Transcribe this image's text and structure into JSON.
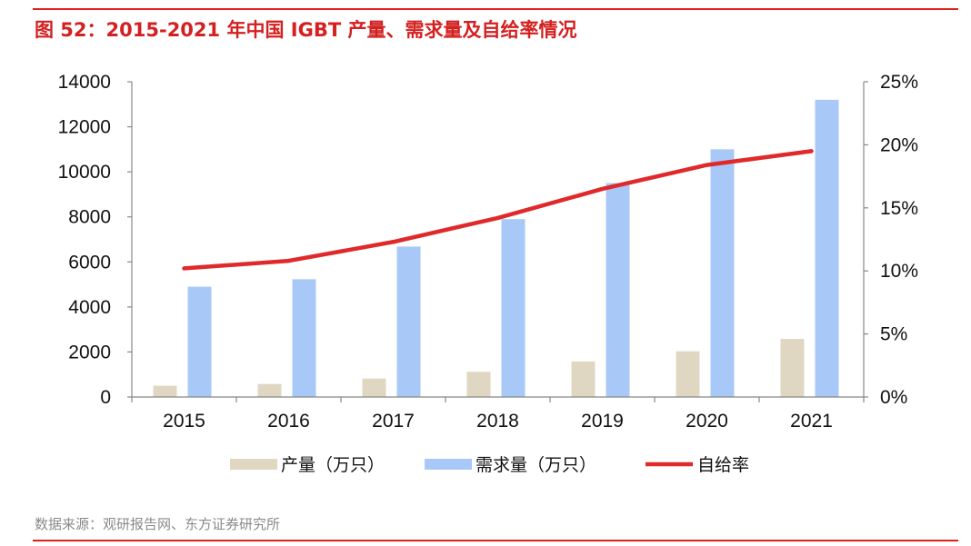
{
  "header": {
    "title": "图 52：2015-2021 年中国 IGBT 产量、需求量及自给率情况"
  },
  "footer": {
    "source": "数据来源：观研报告网、东方证券研究所"
  },
  "colors": {
    "production": "#e0d7c3",
    "demand": "#a8c9f7",
    "ratio": "#e0292a",
    "accent": "#d42020"
  },
  "chart_data": {
    "type": "bar",
    "categories": [
      "2015",
      "2016",
      "2017",
      "2018",
      "2019",
      "2020",
      "2021"
    ],
    "series": [
      {
        "name": "产量（万只）",
        "type": "bar",
        "axis": "left",
        "values": [
          500,
          580,
          820,
          1120,
          1580,
          2030,
          2580
        ]
      },
      {
        "name": "需求量（万只）",
        "type": "bar",
        "axis": "left",
        "values": [
          4900,
          5230,
          6680,
          7900,
          9500,
          11000,
          13200
        ]
      },
      {
        "name": "自给率",
        "type": "line",
        "axis": "right",
        "values": [
          10.2,
          10.8,
          12.3,
          14.2,
          16.5,
          18.4,
          19.5
        ]
      }
    ],
    "y_left": {
      "range": [
        0,
        14000
      ],
      "ticks": [
        "0",
        "2000",
        "4000",
        "6000",
        "8000",
        "10000",
        "12000",
        "14000"
      ]
    },
    "y_right": {
      "range": [
        0,
        25
      ],
      "ticks": [
        "0%",
        "5%",
        "10%",
        "15%",
        "20%",
        "25%"
      ]
    },
    "legend": [
      "产量（万只）",
      "需求量（万只）",
      "自给率"
    ],
    "legend_position": "bottom",
    "grid": false
  }
}
